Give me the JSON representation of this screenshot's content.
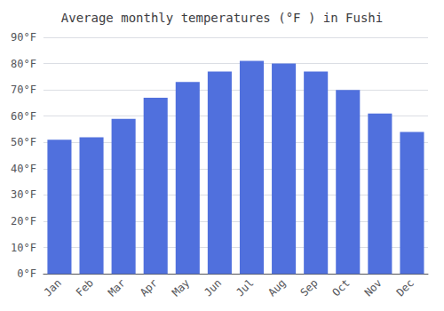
{
  "chart_data": {
    "type": "bar",
    "title": "Average monthly temperatures (°F ) in Fushi",
    "categories": [
      "Jan",
      "Feb",
      "Mar",
      "Apr",
      "May",
      "Jun",
      "Jul",
      "Aug",
      "Sep",
      "Oct",
      "Nov",
      "Dec"
    ],
    "values": [
      51,
      52,
      59,
      67,
      73,
      77,
      81,
      80,
      77,
      70,
      61,
      54
    ],
    "ylim": [
      0,
      90
    ],
    "yticks": [
      {
        "value": 0,
        "label": "0°F"
      },
      {
        "value": 10,
        "label": "10°F"
      },
      {
        "value": 20,
        "label": "20°F"
      },
      {
        "value": 30,
        "label": "30°F"
      },
      {
        "value": 40,
        "label": "40°F"
      },
      {
        "value": 50,
        "label": "50°F"
      },
      {
        "value": 60,
        "label": "60°F"
      },
      {
        "value": 70,
        "label": "70°F"
      },
      {
        "value": 80,
        "label": "80°F"
      },
      {
        "value": 90,
        "label": "90°F"
      }
    ],
    "grid": true
  }
}
